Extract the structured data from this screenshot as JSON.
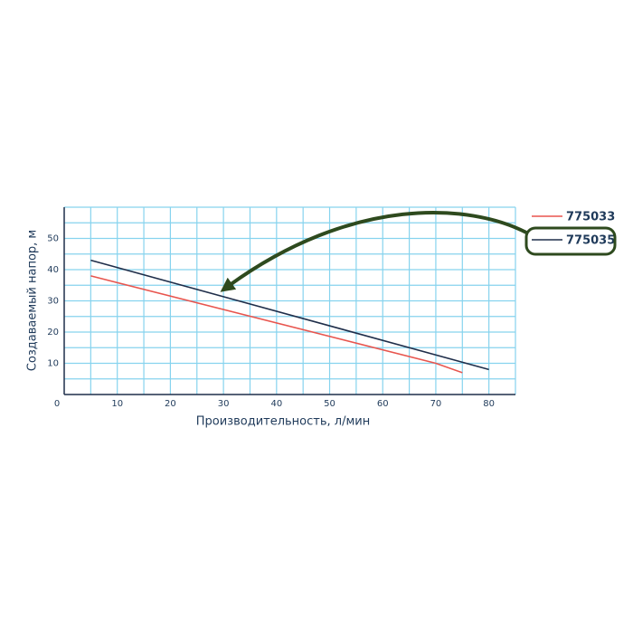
{
  "chart_data": {
    "type": "line",
    "xlabel": "Производительность, л/мин",
    "ylabel": "Создаваемый напор, м",
    "xlim": [
      0,
      85
    ],
    "ylim": [
      0,
      60
    ],
    "xticks": [
      0,
      10,
      20,
      30,
      40,
      50,
      60,
      70,
      80
    ],
    "yticks": [
      10,
      20,
      30,
      40,
      50
    ],
    "xgrid": [
      5,
      10,
      15,
      20,
      25,
      30,
      35,
      40,
      45,
      50,
      55,
      60,
      65,
      70,
      75,
      80,
      85
    ],
    "ygrid": [
      5,
      10,
      15,
      20,
      25,
      30,
      35,
      40,
      45,
      50,
      55,
      60
    ],
    "grid": true,
    "legend": "top-right",
    "series": [
      {
        "name": "775033",
        "color": "#e8554e",
        "x": [
          5,
          70,
          75
        ],
        "values": [
          38,
          10,
          7
        ]
      },
      {
        "name": "775035",
        "color": "#1f2e4a",
        "x": [
          5,
          80
        ],
        "values": [
          43,
          8
        ]
      }
    ]
  }
}
